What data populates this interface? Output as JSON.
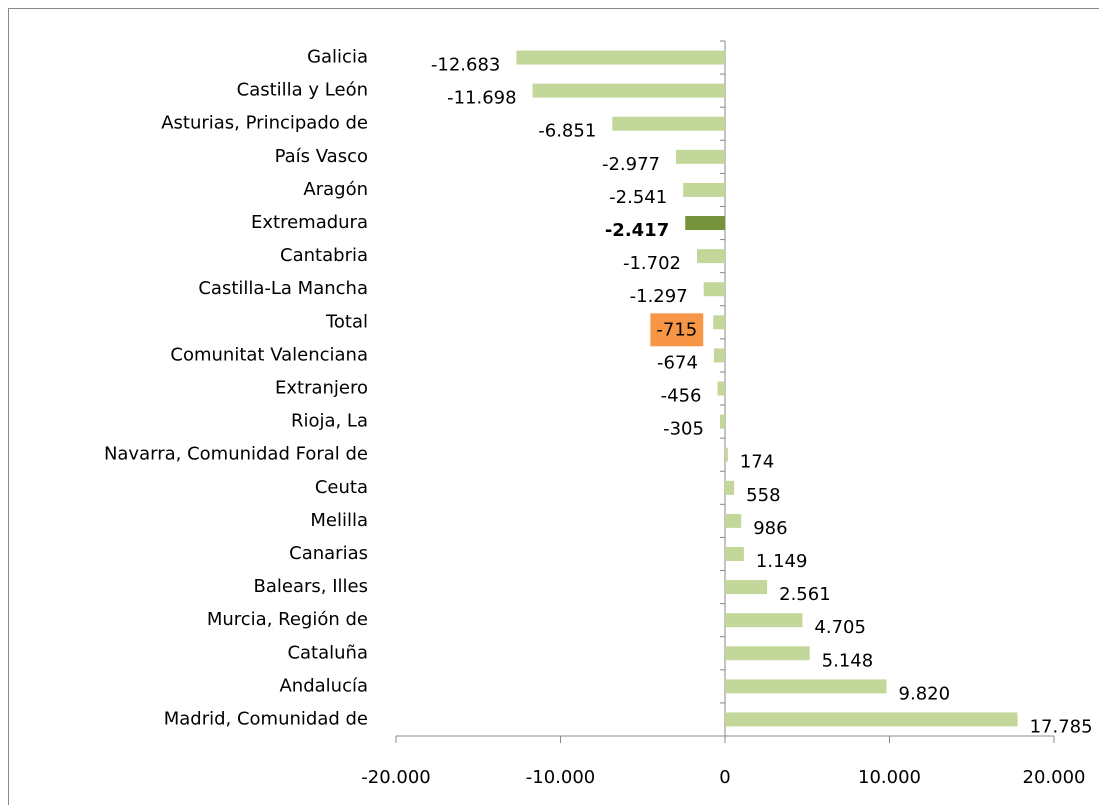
{
  "chart_data": {
    "type": "bar",
    "orientation": "horizontal",
    "categories": [
      "Galicia",
      "Castilla y León",
      "Asturias, Principado de",
      "País Vasco",
      "Aragón",
      "Extremadura",
      "Cantabria",
      "Castilla-La Mancha",
      "Total",
      "Comunitat Valenciana",
      "Extranjero",
      "Rioja, La",
      "Navarra, Comunidad  Foral de",
      "Ceuta",
      "Melilla",
      "Canarias",
      "Balears, Illes",
      "Murcia, Región de",
      "Cataluña",
      "Andalucía",
      "Madrid, Comunidad de"
    ],
    "values": [
      -12683,
      -11698,
      -6851,
      -2977,
      -2541,
      -2417,
      -1702,
      -1297,
      -715,
      -674,
      -456,
      -305,
      174,
      558,
      986,
      1149,
      2561,
      4705,
      5148,
      9820,
      17785
    ],
    "value_labels": [
      "-12.683",
      "-11.698",
      "-6.851",
      "-2.977",
      "-2.541",
      "-2.417",
      "-1.702",
      "-1.297",
      "-715",
      "-674",
      "-456",
      "-305",
      "174",
      "558",
      "986",
      "1.149",
      "2.561",
      "4.705",
      "5.148",
      "9.820",
      "17.785"
    ],
    "color": "#c4d79b",
    "highlight": {
      "Extremadura": {
        "color": "#76933c",
        "bold": true
      },
      "Total": {
        "label_background": "#f79646"
      }
    },
    "xlim": [
      -20000,
      20000
    ],
    "xticks": [
      {
        "value": -20000,
        "label": "-20.000"
      },
      {
        "value": -10000,
        "label": "-10.000"
      },
      0,
      {
        "value": 10000,
        "label": "10.000"
      },
      {
        "value": 20000,
        "label": "20.000"
      }
    ]
  }
}
